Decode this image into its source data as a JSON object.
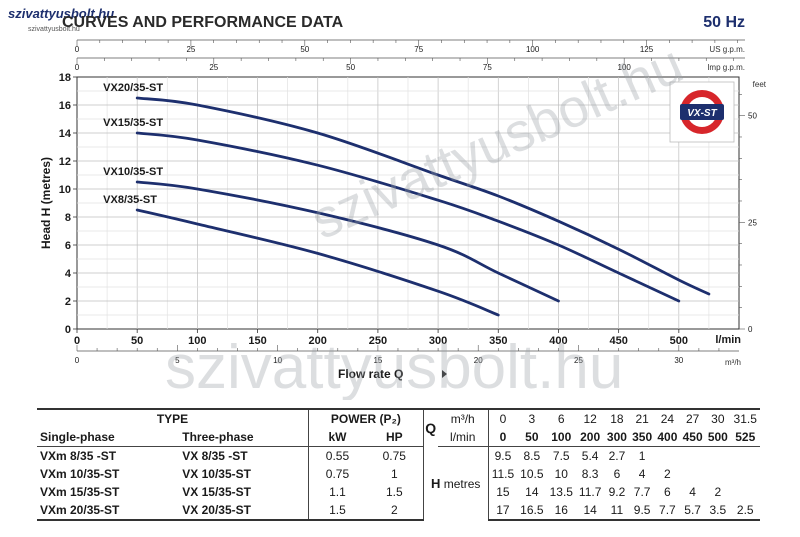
{
  "site": {
    "logo_text": "szivattyusbolt.hu",
    "logo_url": "szivattyusbolt.hu",
    "watermark_main": "szivattyusbolt.hu",
    "watermark_diag": "szivattyusbolt.hu"
  },
  "header": {
    "title": "CURVES AND PERFORMANCE DATA",
    "frequency": "50 Hz"
  },
  "chart_data": {
    "type": "line",
    "title": "CURVES AND PERFORMANCE DATA",
    "xlabel": "Flow rate Q",
    "ylabel": "Head H (metres)",
    "x_unit": "l/min",
    "xlim": [
      0,
      550
    ],
    "ylim": [
      0,
      18
    ],
    "x_ticks": [
      0,
      50,
      100,
      150,
      200,
      250,
      300,
      350,
      400,
      450,
      500
    ],
    "y_ticks": [
      0,
      2,
      4,
      6,
      8,
      10,
      12,
      14,
      16,
      18
    ],
    "top_axis_us": {
      "label": "US g.p.m.",
      "ticks": [
        0,
        25,
        50,
        75,
        100,
        125
      ]
    },
    "top_axis_imp": {
      "label": "Imp g.p.m.",
      "ticks": [
        0,
        25,
        50,
        75,
        100
      ]
    },
    "right_axis": {
      "label": "feet",
      "ticks": [
        0,
        25,
        50
      ]
    },
    "bottom_axis_m3h": {
      "label": "m³/h",
      "ticks": [
        0,
        5,
        10,
        15,
        20,
        25,
        30
      ]
    },
    "grid": true,
    "legend": "top-right logo",
    "badge": "VX-ST",
    "series": [
      {
        "name": "VX20/35-ST",
        "x": [
          50,
          100,
          200,
          300,
          350,
          400,
          450,
          500,
          525
        ],
        "y": [
          16.5,
          16,
          14,
          11,
          9.5,
          7.7,
          5.7,
          3.5,
          2.5
        ]
      },
      {
        "name": "VX15/35-ST",
        "x": [
          50,
          100,
          200,
          300,
          350,
          400,
          450,
          500
        ],
        "y": [
          14,
          13.5,
          11.7,
          9.2,
          7.7,
          6,
          4,
          2
        ]
      },
      {
        "name": "VX10/35-ST",
        "x": [
          50,
          100,
          200,
          300,
          350,
          400
        ],
        "y": [
          10.5,
          10,
          8.3,
          6,
          4,
          2
        ]
      },
      {
        "name": "VX8/35-ST",
        "x": [
          50,
          100,
          200,
          300,
          350
        ],
        "y": [
          8.5,
          7.5,
          5.4,
          2.7,
          1
        ]
      }
    ]
  },
  "table": {
    "type_label": "TYPE",
    "power_label": "POWER (P₂)",
    "q_label": "Q",
    "m3h_label": "m³/h",
    "lmin_label": "l/min",
    "single_label": "Single-phase",
    "three_label": "Three-phase",
    "kw_label": "kW",
    "hp_label": "HP",
    "h_label": "H",
    "metres_label": "metres",
    "m3h": [
      "0",
      "3",
      "6",
      "12",
      "18",
      "21",
      "24",
      "27",
      "30",
      "31.5"
    ],
    "lmin": [
      "0",
      "50",
      "100",
      "200",
      "300",
      "350",
      "400",
      "450",
      "500",
      "525"
    ],
    "rows": [
      {
        "single": "VXm 8/35  -ST",
        "three": "VX 8/35  -ST",
        "kw": "0.55",
        "hp": "0.75",
        "h": [
          "9.5",
          "8.5",
          "7.5",
          "5.4",
          "2.7",
          "1",
          "",
          "",
          "",
          ""
        ]
      },
      {
        "single": "VXm 10/35-ST",
        "three": "VX 10/35-ST",
        "kw": "0.75",
        "hp": "1",
        "h": [
          "11.5",
          "10.5",
          "10",
          "8.3",
          "6",
          "4",
          "2",
          "",
          "",
          ""
        ]
      },
      {
        "single": "VXm 15/35-ST",
        "three": "VX 15/35-ST",
        "kw": "1.1",
        "hp": "1.5",
        "h": [
          "15",
          "14",
          "13.5",
          "11.7",
          "9.2",
          "7.7",
          "6",
          "4",
          "2",
          ""
        ]
      },
      {
        "single": "VXm 20/35-ST",
        "three": "VX 20/35-ST",
        "kw": "1.5",
        "hp": "2",
        "h": [
          "17",
          "16.5",
          "16",
          "14",
          "11",
          "9.5",
          "7.7",
          "5.7",
          "3.5",
          "2.5"
        ]
      }
    ]
  }
}
